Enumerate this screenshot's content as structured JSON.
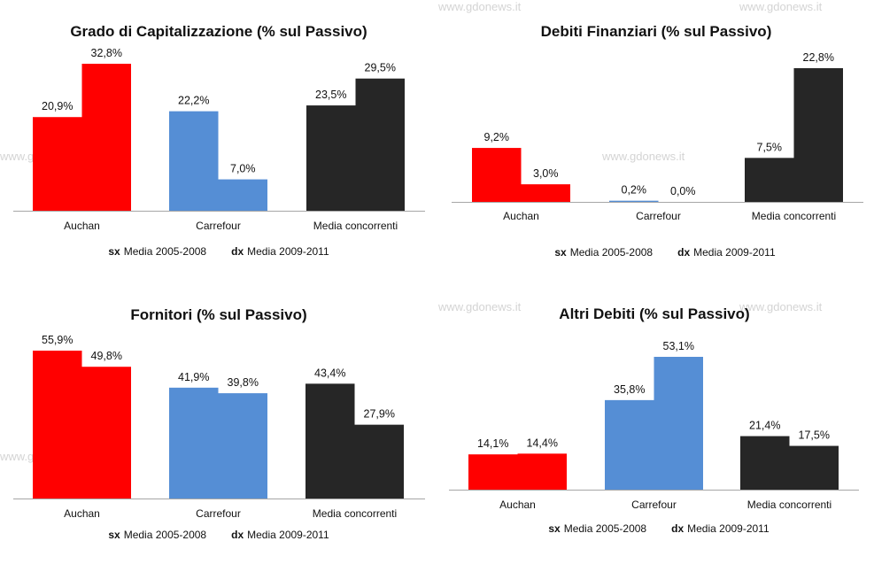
{
  "watermark": "www.gdonews.it",
  "colors": {
    "Auchan": "#ff0000",
    "Carrefour": "#558ed5",
    "Media concorrenti": "#262626",
    "axis": "#a6a6a6"
  },
  "chart_data": [
    {
      "type": "bar",
      "title": "Grado di Capitalizzazione (% sul Passivo)",
      "categories": [
        "Auchan",
        "Carrefour",
        "Media concorrenti"
      ],
      "series": [
        {
          "name": "sx Media 2005-2008",
          "values": [
            20.9,
            22.2,
            23.5
          ],
          "labels": [
            "20,9%",
            "22,2%",
            "23,5%"
          ]
        },
        {
          "name": "dx Media 2009-2011",
          "values": [
            32.8,
            7.0,
            29.5
          ],
          "labels": [
            "32,8%",
            "7,0%",
            "29,5%"
          ]
        }
      ],
      "legend": [
        {
          "key": "sx",
          "text": "Media 2005-2008"
        },
        {
          "key": "dx",
          "text": "Media 2009-2011"
        }
      ],
      "legend_position": "bottom",
      "grid": false
    },
    {
      "type": "bar",
      "title": "Debiti Finanziari (% sul Passivo)",
      "categories": [
        "Auchan",
        "Carrefour",
        "Media concorrenti"
      ],
      "series": [
        {
          "name": "sx Media 2005-2008",
          "values": [
            9.2,
            0.2,
            7.5
          ],
          "labels": [
            "9,2%",
            "0,2%",
            "7,5%"
          ]
        },
        {
          "name": "dx Media 2009-2011",
          "values": [
            3.0,
            0.0,
            22.8
          ],
          "labels": [
            "3,0%",
            "0,0%",
            "22,8%"
          ]
        }
      ],
      "legend": [
        {
          "key": "sx",
          "text": "Media 2005-2008"
        },
        {
          "key": "dx",
          "text": "Media 2009-2011"
        }
      ],
      "legend_position": "bottom",
      "grid": false
    },
    {
      "type": "bar",
      "title": "Fornitori (% sul Passivo)",
      "categories": [
        "Auchan",
        "Carrefour",
        "Media concorrenti"
      ],
      "series": [
        {
          "name": "sx Media 2005-2008",
          "values": [
            55.9,
            41.9,
            43.4
          ],
          "labels": [
            "55,9%",
            "41,9%",
            "43,4%"
          ]
        },
        {
          "name": "dx Media 2009-2011",
          "values": [
            49.8,
            39.8,
            27.9
          ],
          "labels": [
            "49,8%",
            "39,8%",
            "27,9%"
          ]
        }
      ],
      "legend": [
        {
          "key": "sx",
          "text": "Media 2005-2008"
        },
        {
          "key": "dx",
          "text": "Media 2009-2011"
        }
      ],
      "legend_position": "bottom",
      "grid": false
    },
    {
      "type": "bar",
      "title": "Altri Debiti (% sul Passivo)",
      "categories": [
        "Auchan",
        "Carrefour",
        "Media concorrenti"
      ],
      "series": [
        {
          "name": "sx Media 2005-2008",
          "values": [
            14.1,
            35.8,
            21.4
          ],
          "labels": [
            "14,1%",
            "35,8%",
            "21,4%"
          ]
        },
        {
          "name": "dx Media 2009-2011",
          "values": [
            14.4,
            53.1,
            17.5
          ],
          "labels": [
            "14,4%",
            "53,1%",
            "17,5%"
          ]
        }
      ],
      "legend": [
        {
          "key": "sx",
          "text": "Media 2005-2008"
        },
        {
          "key": "dx",
          "text": "Media 2009-2011"
        }
      ],
      "legend_position": "bottom",
      "grid": false
    }
  ]
}
